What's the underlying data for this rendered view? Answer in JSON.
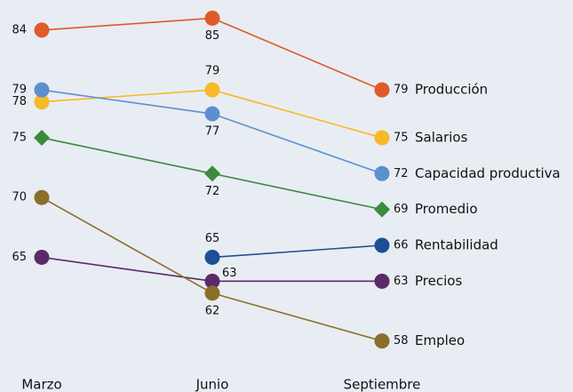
{
  "chart_data": {
    "type": "slope",
    "categories": [
      "Marzo",
      "Junio",
      "Septiembre"
    ],
    "ylim": [
      56,
      86
    ],
    "series": [
      {
        "name": "Producción",
        "color": "#e05a2b",
        "marker": "circle",
        "values": [
          84,
          85,
          79
        ]
      },
      {
        "name": "Salarios",
        "color": "#f7b928",
        "marker": "circle",
        "values": [
          78,
          79,
          75
        ]
      },
      {
        "name": "Capacidad productiva",
        "color": "#5b8fd0",
        "marker": "circle",
        "values": [
          79,
          77,
          72
        ]
      },
      {
        "name": "Promedio",
        "color": "#3c8a3c",
        "marker": "diamond",
        "values": [
          75,
          72,
          69
        ]
      },
      {
        "name": "Rentabilidad",
        "color": "#1d4e96",
        "marker": "circle",
        "values": [
          null,
          65,
          66
        ]
      },
      {
        "name": "Precios",
        "color": "#5b2a68",
        "marker": "circle",
        "values": [
          65,
          63,
          63
        ]
      },
      {
        "name": "Empleo",
        "color": "#8a6e2a",
        "marker": "circle",
        "values": [
          70,
          62,
          58
        ]
      }
    ]
  }
}
